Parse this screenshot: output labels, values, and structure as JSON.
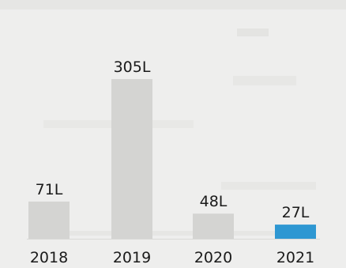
{
  "chart_data": {
    "type": "bar",
    "title": "",
    "xlabel": "",
    "ylabel": "",
    "categories": [
      "2018",
      "2019",
      "2020",
      "2021"
    ],
    "values": [
      71,
      305,
      48,
      27
    ],
    "data_labels": [
      "71L",
      "305L",
      "48L",
      "27L"
    ],
    "unit": "L",
    "ylim": [
      0,
      305
    ],
    "grid": false,
    "legend": "none",
    "colors": {
      "bar": "#d4d4d2",
      "highlight": "#2e97d2",
      "text": "#1a1a1a",
      "background": "#eeeeed"
    },
    "highlight_index": 3
  }
}
